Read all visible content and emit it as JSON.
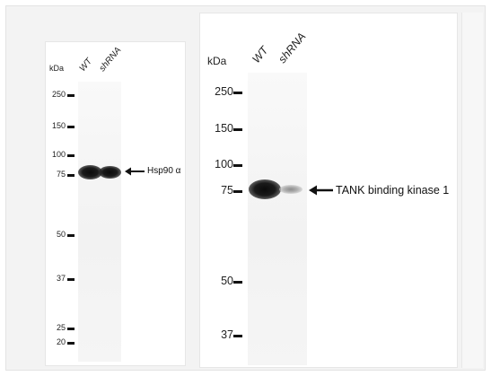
{
  "left_blot": {
    "kda_label": "kDa",
    "lanes": [
      "WT",
      "shRNA"
    ],
    "markers": [
      "250",
      "150",
      "100",
      "75",
      "50",
      "37",
      "25",
      "20"
    ],
    "target_label": "Hsp90 α"
  },
  "right_blot": {
    "kda_label": "kDa",
    "lanes": [
      "WT",
      "shRNA"
    ],
    "markers": [
      "250",
      "150",
      "100",
      "75",
      "50",
      "37"
    ],
    "target_label": "TANK binding kinase 1"
  },
  "colors": {
    "background": "#ffffff",
    "frame": "#f3f3f3",
    "band": "#111111"
  }
}
